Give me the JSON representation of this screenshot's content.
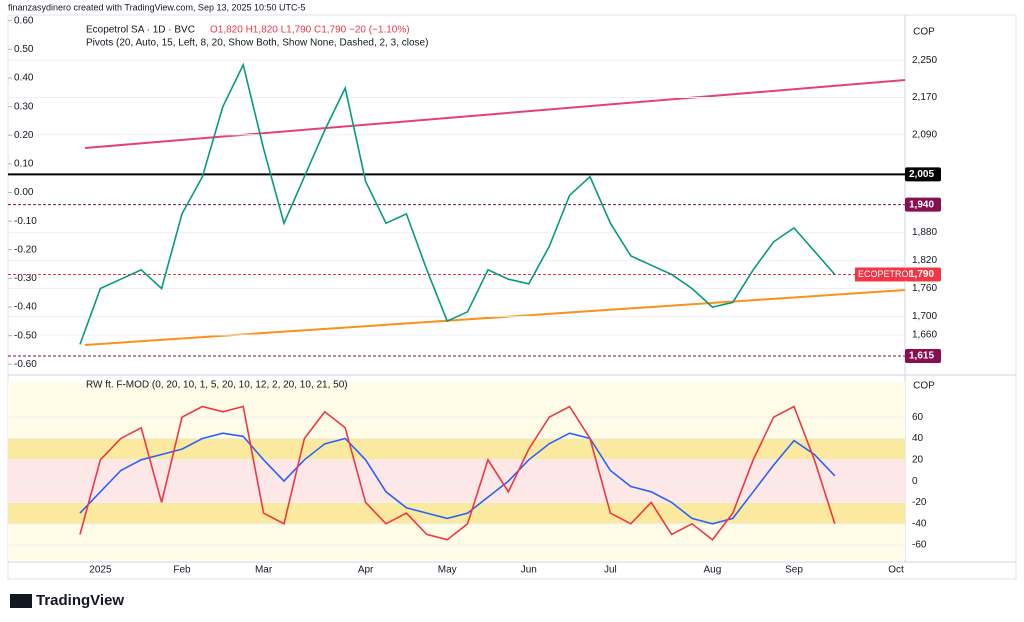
{
  "header": {
    "credit": "finanzasydinero created with TradingView.com, Sep 13, 2025 10:50 UTC-5",
    "symbol": "Ecopetrol SA · 1D · BVC",
    "ohlc": "O1,820 H1,820 L1,790 C1,790 −20 (−1.10%)",
    "pivots": "Pivots (20, Auto, 15, Left, 8, 20, Show Both, Show None, Dashed, 2, 3, close)",
    "brand": "TradingView"
  },
  "chart_data": [
    {
      "type": "line",
      "currency": "COP",
      "categories": [
        null,
        "2025",
        null,
        null,
        null,
        "Feb",
        null,
        null,
        null,
        "Mar",
        null,
        null,
        null,
        null,
        "Apr",
        null,
        null,
        null,
        "May",
        null,
        null,
        null,
        "Jun",
        null,
        null,
        null,
        "Jul",
        null,
        null,
        null,
        null,
        "Aug",
        null,
        null,
        null,
        "Sep",
        null,
        null,
        null,
        null,
        "Oct"
      ],
      "values": [
        1640,
        1760,
        1780,
        1800,
        1760,
        1920,
        2000,
        2150,
        2240,
        2060,
        1900,
        2000,
        2100,
        2190,
        1990,
        1900,
        1920,
        1800,
        1690,
        1710,
        1800,
        1780,
        1770,
        1850,
        1960,
        2000,
        1900,
        1830,
        1810,
        1790,
        1760,
        1720,
        1730,
        1800,
        1860,
        1890,
        1840,
        1790,
        null,
        null,
        null
      ],
      "color": "#089981",
      "ylim": [
        1585,
        2347
      ],
      "yticks": [
        {
          "value": 1660,
          "label": "1,660"
        },
        {
          "value": 1700,
          "label": "1,700"
        },
        {
          "value": 1760,
          "label": "1,760"
        },
        {
          "value": 1820,
          "label": "1,820"
        },
        {
          "value": 1880,
          "label": "1,880"
        },
        {
          "value": 2090,
          "label": "2,090"
        },
        {
          "value": 2170,
          "label": "2,170"
        },
        {
          "value": 2250,
          "label": "2,250"
        }
      ],
      "y2lim": [
        -0.62,
        0.62
      ],
      "y2ticks": [
        {
          "value": 0.6,
          "label": "0.60"
        },
        {
          "value": 0.5,
          "label": "0.50"
        },
        {
          "value": 0.4,
          "label": "0.40"
        },
        {
          "value": 0.3,
          "label": "0.30"
        },
        {
          "value": 0.2,
          "label": "0.20"
        },
        {
          "value": 0.1,
          "label": "0.10"
        },
        {
          "value": 0,
          "label": "0.00"
        },
        {
          "value": -0.1,
          "label": "-0.10"
        },
        {
          "value": -0.2,
          "label": "-0.20"
        },
        {
          "value": -0.3,
          "label": "-0.30"
        },
        {
          "value": -0.4,
          "label": "-0.40"
        },
        {
          "value": -0.5,
          "label": "-0.50"
        },
        {
          "value": -0.6,
          "label": "-0.60"
        }
      ],
      "price_levels": [
        {
          "value": 2005,
          "label": "2,005",
          "color": "#000000"
        },
        {
          "value": 1940,
          "label": "1,940",
          "color": "#880e4f"
        },
        {
          "value": 1790,
          "label": "1,790",
          "color": "#f23645"
        },
        {
          "value": 1615,
          "label": "1,615",
          "color": "#880e4f"
        }
      ],
      "last_label": "ECOPETROL",
      "grid": true
    },
    {
      "type": "line",
      "title": "RW ft. F-MOD (0, 20, 10, 1, 5, 20, 10, 12, 2, 20, 10, 21, 50)",
      "currency": "COP",
      "series": [
        {
          "color": "#2962ff",
          "values": [
            -30,
            -10,
            10,
            20,
            25,
            30,
            40,
            45,
            42,
            20,
            0,
            20,
            35,
            40,
            20,
            -10,
            -25,
            -30,
            -35,
            -30,
            -15,
            0,
            20,
            35,
            45,
            40,
            10,
            -5,
            -10,
            -20,
            -35,
            -40,
            -35,
            -10,
            15,
            38,
            25,
            5
          ]
        },
        {
          "color": "#f23645",
          "values": [
            -50,
            20,
            40,
            50,
            -20,
            60,
            70,
            65,
            70,
            -30,
            -40,
            40,
            65,
            50,
            -20,
            -40,
            -30,
            -50,
            -55,
            -40,
            20,
            -10,
            30,
            60,
            70,
            40,
            -30,
            -40,
            -20,
            -50,
            -40,
            -55,
            -30,
            20,
            60,
            70,
            20,
            -40
          ]
        }
      ],
      "ylim": [
        -74,
        93
      ],
      "yticks": [
        -60,
        -40,
        -20,
        0,
        20,
        40,
        60
      ],
      "zones": [
        {
          "from": 40,
          "to": 93,
          "color": "#fffde7"
        },
        {
          "from": 20,
          "to": 40,
          "color": "#fbe9a0"
        },
        {
          "from": -20,
          "to": 20,
          "color": "#fde7e7"
        },
        {
          "from": -40,
          "to": -20,
          "color": "#fbe9a0"
        },
        {
          "from": -74,
          "to": -40,
          "color": "#fffde7"
        }
      ],
      "grid": true
    }
  ]
}
